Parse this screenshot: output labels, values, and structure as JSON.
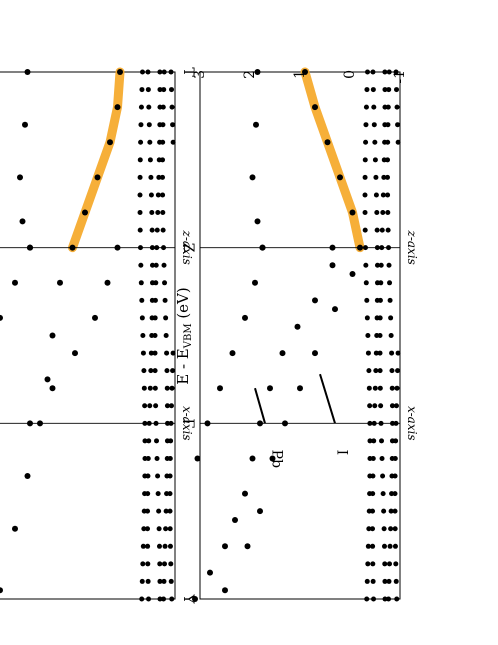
{
  "figure": {
    "ylabel": "E - E_VBM (eV)",
    "ylabel_main": "E - E",
    "ylabel_sub": "VBM",
    "ylabel_unit": " (eV)",
    "ylim": [
      -1,
      3
    ],
    "yticks": [
      "3",
      "2",
      "1",
      "0",
      "-1"
    ],
    "kpoint_labels": [
      "T",
      "Z",
      "Γ",
      "Y"
    ],
    "direction_labels": [
      "x-axis",
      "z-axis"
    ]
  },
  "chart_data": [
    {
      "type": "scatter",
      "panel": "left",
      "annotations": [
        "Pb",
        "I"
      ],
      "ylim": [
        -1,
        3
      ],
      "x_ticks": [
        "T",
        "Z",
        "Γ",
        "Y"
      ],
      "projection_color": "#f5a623",
      "series": [
        {
          "values": [
            {
              "k": 2.95,
              "e": 2.5
            },
            {
              "k": 2.7,
              "e": 2.05
            },
            {
              "k": 2.5,
              "e": 1.8
            },
            {
              "k": 2.2,
              "e": 1.55
            },
            {
              "k": 2.0,
              "e": 1.3
            },
            {
              "k": 1.8,
              "e": 1.0
            },
            {
              "k": 1.6,
              "e": 0.7
            },
            {
              "k": 1.35,
              "e": 0.3
            },
            {
              "k": 1.15,
              "e": -0.05
            },
            {
              "k": 1.0,
              "e": -0.2
            },
            {
              "k": 0.8,
              "e": -0.05
            },
            {
              "k": 0.6,
              "e": 0.2
            },
            {
              "k": 0.4,
              "e": 0.45
            },
            {
              "k": 0.2,
              "e": 0.7
            },
            {
              "k": 0.0,
              "e": 0.9
            }
          ]
        },
        {
          "values": [
            {
              "k": 3.0,
              "e": 3.1
            },
            {
              "k": 2.85,
              "e": 2.8
            },
            {
              "k": 2.7,
              "e": 2.5
            },
            {
              "k": 2.55,
              "e": 2.3
            },
            {
              "k": 2.4,
              "e": 2.1
            },
            {
              "k": 2.2,
              "e": 1.95
            },
            {
              "k": 2.0,
              "e": 1.8
            },
            {
              "k": 1.8,
              "e": 1.6
            },
            {
              "k": 1.6,
              "e": 1.35
            },
            {
              "k": 1.45,
              "e": 1.05
            },
            {
              "k": 1.3,
              "e": 0.7
            },
            {
              "k": 1.1,
              "e": 0.35
            },
            {
              "k": 1.0,
              "e": 0.35
            }
          ]
        },
        {
          "values": [
            {
              "k": 1.0,
              "e": 1.75
            },
            {
              "k": 1.2,
              "e": 1.9
            },
            {
              "k": 1.4,
              "e": 2.1
            },
            {
              "k": 1.6,
              "e": 2.35
            },
            {
              "k": 1.8,
              "e": 2.6
            },
            {
              "k": 2.0,
              "e": 2.85
            },
            {
              "k": 2.2,
              "e": 3.05
            }
          ]
        },
        {
          "values": [
            {
              "k": 0.0,
              "e": 1.85
            },
            {
              "k": 0.3,
              "e": 1.88
            },
            {
              "k": 0.6,
              "e": 1.95
            },
            {
              "k": 0.85,
              "e": 1.85
            },
            {
              "k": 1.0,
              "e": 1.75
            }
          ]
        }
      ]
    },
    {
      "type": "scatter",
      "panel": "right",
      "annotations": [],
      "ylim": [
        -1,
        3
      ],
      "x_ticks": [
        "T",
        "Z",
        "Γ",
        "Y"
      ],
      "projection_color": "#f5a623",
      "series": [
        {
          "values": [
            {
              "k": 2.95,
              "e": 2.5
            },
            {
              "k": 2.6,
              "e": 2.2
            },
            {
              "k": 2.3,
              "e": 1.95
            },
            {
              "k": 2.0,
              "e": 1.7
            },
            {
              "k": 1.75,
              "e": 1.55
            },
            {
              "k": 1.5,
              "e": 1.45
            },
            {
              "k": 1.2,
              "e": 1.3
            },
            {
              "k": 1.0,
              "e": 1.05
            },
            {
              "k": 0.8,
              "e": 0.8
            },
            {
              "k": 0.6,
              "e": 0.55
            },
            {
              "k": 0.4,
              "e": 0.3
            },
            {
              "k": 0.2,
              "e": 0.15
            },
            {
              "k": 0.0,
              "e": 0.1
            }
          ]
        },
        {
          "values": [
            {
              "k": 1.0,
              "e": 0.15
            },
            {
              "k": 1.2,
              "e": 0.35
            },
            {
              "k": 1.4,
              "e": 0.6
            },
            {
              "k": 1.6,
              "e": 1.0
            },
            {
              "k": 1.8,
              "e": 1.45
            },
            {
              "k": 2.0,
              "e": 1.9
            }
          ]
        },
        {
          "values": [
            {
              "k": 0.0,
              "e": 1.95
            },
            {
              "k": 0.3,
              "e": 2.0
            },
            {
              "k": 0.6,
              "e": 2.1
            },
            {
              "k": 0.85,
              "e": 2.05
            },
            {
              "k": 1.0,
              "e": 1.9
            }
          ]
        },
        {
          "values": [
            {
              "k": 1.0,
              "e": 1.9
            },
            {
              "k": 1.2,
              "e": 2.2
            },
            {
              "k": 1.4,
              "e": 2.5
            },
            {
              "k": 1.6,
              "e": 2.8
            },
            {
              "k": 1.75,
              "e": 3.0
            }
          ]
        }
      ]
    }
  ]
}
